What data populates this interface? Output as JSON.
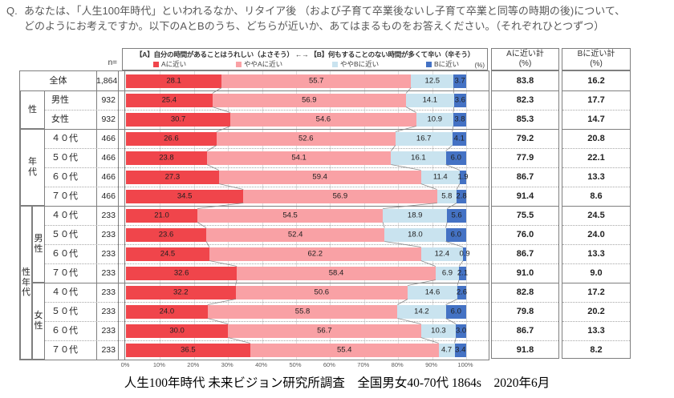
{
  "question": {
    "prefix": "Q.",
    "line1": "あなたは、「人生100年時代」といわれるなか、リタイア後 （および子育て卒業後ないし子育て卒業と同等の時期の後)について、",
    "line2": "どのようにお考えですか。以下のAとBのうち、どちらが近いか、あてはまるものをお答えください。（それぞれひとつずつ）"
  },
  "chart_header": {
    "scale_label": "【A】自分の時間があることはうれしい（よさそう） ←→ 【B】何もすることのない時間が多くて辛い（辛そう）",
    "n_label": "n=",
    "percent_note": "(%)",
    "a_total_title": "Aに近い計",
    "a_total_unit": "(%)",
    "b_total_title": "Bに近い計",
    "b_total_unit": "(%)"
  },
  "legend": [
    {
      "label": "Aに近い",
      "color": "#f0454b"
    },
    {
      "label": "ややAに近い",
      "color": "#f9a1a5"
    },
    {
      "label": "ややBに近い",
      "color": "#c9e3ef"
    },
    {
      "label": "Bに近い",
      "color": "#4472c4"
    }
  ],
  "chart_data": {
    "type": "bar",
    "orientation": "horizontal-stacked",
    "series": [
      "Aに近い",
      "ややAに近い",
      "ややBに近い",
      "Bに近い"
    ],
    "colors": [
      "#f0454b",
      "#f9a1a5",
      "#c9e3ef",
      "#4472c4"
    ],
    "xlim": [
      0,
      100
    ],
    "ticks": [
      "0%",
      "10%",
      "20%",
      "30%",
      "40%",
      "50%",
      "60%",
      "70%",
      "80%",
      "90%",
      "100%"
    ],
    "grid": true,
    "row_groups": [
      {
        "label": "",
        "start": 0,
        "end": 0
      },
      {
        "label": "性",
        "start": 1,
        "end": 2
      },
      {
        "label": "年代",
        "start": 3,
        "end": 6
      },
      {
        "label": "性年代",
        "start": 7,
        "end": 14,
        "sub": [
          {
            "label": "男性",
            "start": 7,
            "end": 10
          },
          {
            "label": "女性",
            "start": 11,
            "end": 14
          }
        ]
      }
    ],
    "rows": [
      {
        "label": "全体",
        "n": "1,864",
        "values": [
          28.1,
          55.7,
          12.5,
          3.7
        ],
        "a_total": "83.8",
        "b_total": "16.2"
      },
      {
        "label": "男性",
        "n": "932",
        "values": [
          25.4,
          56.9,
          14.1,
          3.6
        ],
        "a_total": "82.3",
        "b_total": "17.7"
      },
      {
        "label": "女性",
        "n": "932",
        "values": [
          30.7,
          54.6,
          10.9,
          3.8
        ],
        "a_total": "85.3",
        "b_total": "14.7"
      },
      {
        "label": "４０代",
        "n": "466",
        "values": [
          26.6,
          52.6,
          16.7,
          4.1
        ],
        "a_total": "79.2",
        "b_total": "20.8"
      },
      {
        "label": "５０代",
        "n": "466",
        "values": [
          23.8,
          54.1,
          16.1,
          6.0
        ],
        "a_total": "77.9",
        "b_total": "22.1"
      },
      {
        "label": "６０代",
        "n": "466",
        "values": [
          27.3,
          59.4,
          11.4,
          1.9
        ],
        "a_total": "86.7",
        "b_total": "13.3"
      },
      {
        "label": "７０代",
        "n": "466",
        "values": [
          34.5,
          56.9,
          5.8,
          2.8
        ],
        "a_total": "91.4",
        "b_total": "8.6"
      },
      {
        "label": "４０代",
        "n": "233",
        "values": [
          21.0,
          54.5,
          18.9,
          5.6
        ],
        "a_total": "75.5",
        "b_total": "24.5"
      },
      {
        "label": "５０代",
        "n": "233",
        "values": [
          23.6,
          52.4,
          18.0,
          6.0
        ],
        "a_total": "76.0",
        "b_total": "24.0"
      },
      {
        "label": "６０代",
        "n": "233",
        "values": [
          24.5,
          62.2,
          12.4,
          0.9
        ],
        "a_total": "86.7",
        "b_total": "13.3"
      },
      {
        "label": "７０代",
        "n": "233",
        "values": [
          32.6,
          58.4,
          6.9,
          2.1
        ],
        "a_total": "91.0",
        "b_total": "9.0"
      },
      {
        "label": "４０代",
        "n": "233",
        "values": [
          32.2,
          50.6,
          14.6,
          2.6
        ],
        "a_total": "82.8",
        "b_total": "17.2"
      },
      {
        "label": "５０代",
        "n": "233",
        "values": [
          24.0,
          55.8,
          14.2,
          6.0
        ],
        "a_total": "79.8",
        "b_total": "20.2"
      },
      {
        "label": "６０代",
        "n": "233",
        "values": [
          30.0,
          56.7,
          10.3,
          3.0
        ],
        "a_total": "86.7",
        "b_total": "13.3"
      },
      {
        "label": "７０代",
        "n": "233",
        "values": [
          36.5,
          55.4,
          4.7,
          3.4
        ],
        "a_total": "91.8",
        "b_total": "8.2"
      }
    ]
  },
  "footer": "人生100年時代 未来ビジョン研究所調査　全国男女40-70代 1864s　2020年6月"
}
